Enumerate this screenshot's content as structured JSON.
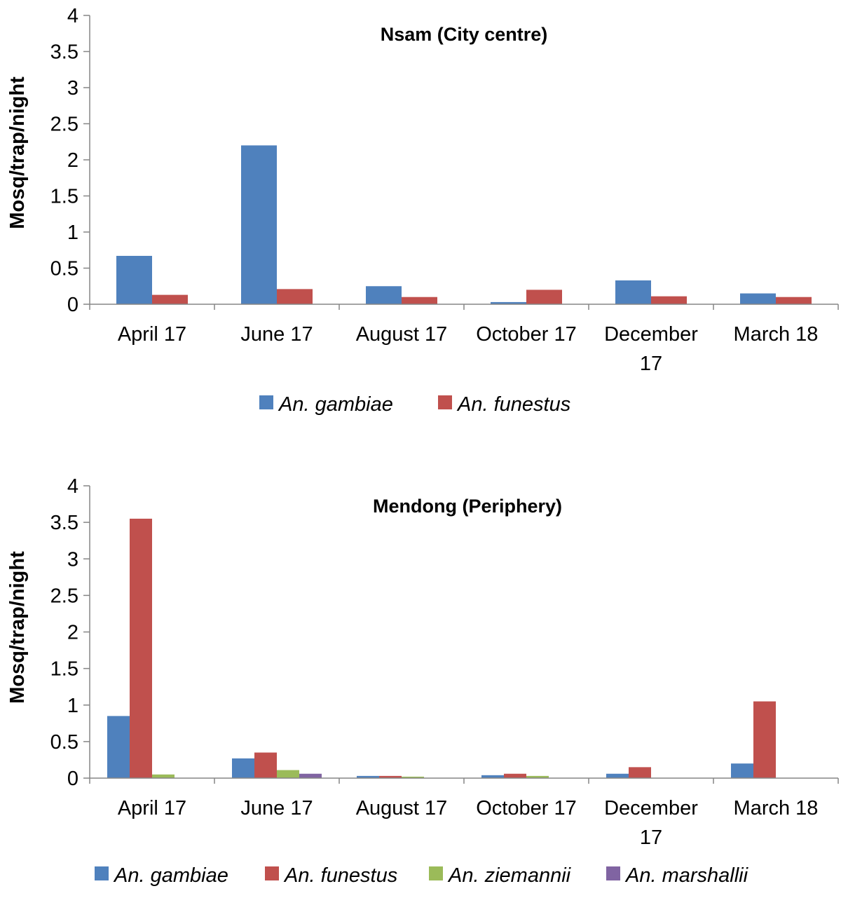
{
  "chart_data": [
    {
      "type": "bar",
      "title": "Nsam (City centre)",
      "ylabel": "Mosq/trap/night",
      "xlabel": "",
      "ylim": [
        0,
        4
      ],
      "yticks": [
        "0",
        "0.5",
        "1",
        "1.5",
        "2",
        "2.5",
        "3",
        "3.5",
        "4"
      ],
      "grid": false,
      "legend": "bottom",
      "categories": [
        [
          "April 17"
        ],
        [
          "June 17"
        ],
        [
          "August 17"
        ],
        [
          "October 17"
        ],
        [
          "December",
          "17"
        ],
        [
          "March 18"
        ]
      ],
      "series": [
        {
          "name": "An. gambiae",
          "color": "#4F81BD",
          "values": [
            0.67,
            2.2,
            0.25,
            0.03,
            0.33,
            0.15
          ]
        },
        {
          "name": "An. funestus",
          "color": "#C0504D",
          "values": [
            0.13,
            0.21,
            0.1,
            0.2,
            0.11,
            0.1
          ]
        }
      ]
    },
    {
      "type": "bar",
      "title": "Mendong (Periphery)",
      "ylabel": "Mosq/trap/night",
      "xlabel": "",
      "ylim": [
        0,
        4
      ],
      "yticks": [
        "0",
        "0.5",
        "1",
        "1.5",
        "2",
        "2.5",
        "3",
        "3.5",
        "4"
      ],
      "grid": false,
      "legend": "bottom",
      "categories": [
        [
          "April 17"
        ],
        [
          "June 17"
        ],
        [
          "August 17"
        ],
        [
          "October 17"
        ],
        [
          "December",
          "17"
        ],
        [
          "March 18"
        ]
      ],
      "series": [
        {
          "name": "An. gambiae",
          "color": "#4F81BD",
          "values": [
            0.85,
            0.27,
            0.03,
            0.04,
            0.06,
            0.2
          ]
        },
        {
          "name": "An. funestus",
          "color": "#C0504D",
          "values": [
            3.55,
            0.35,
            0.03,
            0.06,
            0.15,
            1.05
          ]
        },
        {
          "name": "An. ziemannii",
          "color": "#9BBB59",
          "values": [
            0.05,
            0.11,
            0.02,
            0.03,
            0,
            0
          ]
        },
        {
          "name": "An. marshallii",
          "color": "#8064A2",
          "values": [
            0,
            0.06,
            0,
            0,
            0,
            0
          ]
        }
      ]
    }
  ]
}
